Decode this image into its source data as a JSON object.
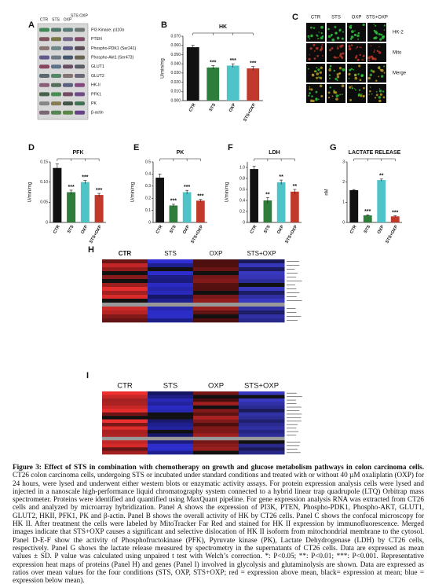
{
  "blot": {
    "panel": "A",
    "lanes": [
      "CTR",
      "STS",
      "OXP",
      "STS OXP"
    ],
    "proteins": [
      "PI3 Kinase, p110α",
      "PTEN",
      "Phospho-PDK1 (Ser241)",
      "Phospho-Akt1 (Ser473)",
      "GLUT1",
      "GLUT2",
      "HK-II",
      "PFK1",
      "PK",
      "β-actin"
    ]
  },
  "micrograph": {
    "panel": "C",
    "columns": [
      "CTR",
      "STS",
      "OXP",
      "STS+OXP"
    ],
    "rows": [
      "HK-2",
      "Mito",
      "Merge"
    ]
  },
  "chart_data": [
    {
      "type": "bar",
      "panel": "B",
      "title": "HK",
      "ylabel": "U/min/mg",
      "categories": [
        "CTR",
        "STS",
        "OXP",
        "STS+OXP"
      ],
      "values": [
        0.058,
        0.036,
        0.038,
        0.035
      ],
      "errors": [
        0.002,
        0.002,
        0.002,
        0.002
      ],
      "significance": [
        null,
        "***",
        "***",
        "***"
      ],
      "colors": [
        "#111111",
        "#2e7d3a",
        "#4fc4c8",
        "#c0392b"
      ],
      "ylim": [
        0,
        0.07
      ],
      "yticks": [
        {
          "value": 0,
          "label": "0.000"
        },
        {
          "value": 0.01,
          "label": "0.010"
        },
        {
          "value": 0.02,
          "label": "0.020"
        },
        {
          "value": 0.03,
          "label": "0.030"
        },
        {
          "value": 0.04,
          "label": "0.040"
        },
        {
          "value": 0.05,
          "label": "0.050"
        },
        {
          "value": 0.06,
          "label": "0.060"
        },
        {
          "value": 0.07,
          "label": "0.070"
        }
      ]
    },
    {
      "type": "bar",
      "panel": "D",
      "title": "PFK",
      "ylabel": "U/min/mg",
      "categories": [
        "CTR",
        "STS",
        "OXP",
        "STS+OXP"
      ],
      "values": [
        0.135,
        0.075,
        0.1,
        0.068
      ],
      "errors": [
        0.01,
        0.005,
        0.004,
        0.004
      ],
      "significance": [
        null,
        "***",
        "***",
        "***"
      ],
      "colors": [
        "#111111",
        "#2e7d3a",
        "#4fc4c8",
        "#c0392b"
      ],
      "ylim": [
        0,
        0.15
      ],
      "yticks": [
        0,
        {
          "value": 0.05,
          "label": "0.05"
        },
        {
          "value": 0.1,
          "label": "0.10"
        },
        {
          "value": 0.15,
          "label": "0.15"
        }
      ]
    },
    {
      "type": "bar",
      "panel": "E",
      "title": "PK",
      "ylabel": "U/min/mg",
      "categories": [
        "CTR",
        "STS",
        "OXP",
        "STS+OXP"
      ],
      "values": [
        0.37,
        0.14,
        0.25,
        0.18
      ],
      "errors": [
        0.03,
        0.01,
        0.015,
        0.01
      ],
      "significance": [
        null,
        "***",
        "***",
        "***"
      ],
      "colors": [
        "#111111",
        "#2e7d3a",
        "#4fc4c8",
        "#c0392b"
      ],
      "ylim": [
        0,
        0.5
      ],
      "yticks": [
        0,
        0.1,
        0.2,
        0.3,
        0.4,
        0.5
      ]
    },
    {
      "type": "bar",
      "panel": "F",
      "title": "LDH",
      "ylabel": "U/min/mg",
      "categories": [
        "CTR",
        "STS",
        "OXP",
        "STS+OXP"
      ],
      "values": [
        0.97,
        0.4,
        0.73,
        0.56
      ],
      "errors": [
        0.05,
        0.05,
        0.04,
        0.04
      ],
      "significance": [
        null,
        "**",
        "**",
        "**"
      ],
      "colors": [
        "#111111",
        "#2e7d3a",
        "#4fc4c8",
        "#c0392b"
      ],
      "ylim": [
        0,
        1.1
      ],
      "yticks": [
        0,
        0.2,
        0.4,
        0.6,
        0.8,
        {
          "value": 1,
          "label": "1.0"
        }
      ]
    },
    {
      "type": "bar",
      "panel": "G",
      "title": "LACTATE RELEASE",
      "ylabel": "nM",
      "categories": [
        "CTR",
        "STS",
        "OXP",
        "STS+OXP"
      ],
      "values": [
        1.6,
        0.35,
        2.1,
        0.3
      ],
      "errors": [
        0.03,
        0.03,
        0.05,
        0.03
      ],
      "significance": [
        null,
        "***",
        "**",
        "***"
      ],
      "colors": [
        "#111111",
        "#2e7d3a",
        "#4fc4c8",
        "#c0392b"
      ],
      "ylim": [
        0,
        3
      ],
      "yticks": [
        0,
        1,
        2,
        3
      ]
    }
  ],
  "heatmaps": [
    {
      "panel": "H",
      "columns": [
        "CTR",
        "STS",
        "OXP",
        "STS+OXP"
      ]
    },
    {
      "panel": "I",
      "columns": [
        "CTR",
        "STS",
        "OXP",
        "STS+OXP"
      ]
    }
  ],
  "caption": {
    "title": "Figure 3: Effect of STS in combination with chemotherapy on growth and glucose metabolism pathways in colon carcinoma cells.",
    "body": "CT26 colon carcinoma cells, undergoing STS or incubated under standard conditions and treated with or without 40 µM oxaliplatin (OXP) for 24 hours, were lysed and underwent either western blots or enzymatic activity assays. For protein expression analysis cells were lysed and injected in a nanoscale high-performance liquid chromatography system connected to a hybrid linear trap quadrupole (LTQ) Orbitrap mass spectrometer. Proteins were identified and quantified using MaxQuant pipeline. For gene expression analysis RNA was extracted from CT26 cells and analyzed by microarray hybridization. Panel A shows the expression of PI3K, PTEN, Phospho-PDK1, Phospho-AKT, GLUT1, GLUT2, HKII, PFK1, PK and β-actin. Panel B shows the overall activity of HK by CT26 cells. Panel C shows the confocal microscopy for HK II. After treatment the cells were labeled by MitoTracker Far Red and stained for HK II expression by immunofluorescence. Merged images indicate that STS+OXP causes a significant and selective dislocation of HK II isoform from mitochondrial membrane to the cytosol. Panel D-E-F show the activity of Phosphofructokinase (PFK), Pyruvate kinase (PK), Lactate Dehydrogenase (LDH) by CT26 cells, respectively. Panel G shows the lactate release measured by spectrometry in the supernatants of CT26 cells. Data are expressed as mean values ± SD. P value was calculated using unpaired t test with Welch’s correction. *: P<0.05; **: P<0.01; ***: P<0.001. Representative expression heat maps of proteins (Panel H) and genes (Panel I) involved in glycolysis and glutaminolysis are shown. Data are expressed as ratios over mean values for the four conditions (STS, OXP, STS+OXP; red = expression above mean, black= expression at mean; blue = expression below mean)."
  }
}
